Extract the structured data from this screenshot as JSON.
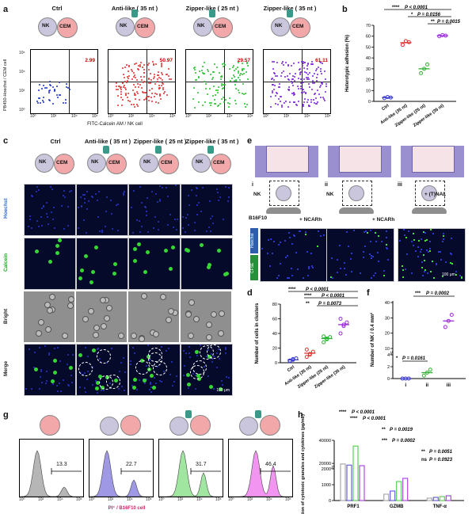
{
  "a": {
    "label": "a",
    "titles": [
      "Ctrl",
      "Anti-like ( 35 nt )",
      "Zipper-like ( 25 nt )",
      "Zipper-like ( 35 nt )"
    ],
    "percents": [
      "2.99",
      "50.97",
      "29.57",
      "61.11"
    ],
    "pct_colors": [
      "#d32222",
      "#d32222",
      "#d32222",
      "#d32222"
    ],
    "dot_colors": [
      "#1a33c9",
      "#e23030",
      "#22c42a",
      "#7a22d8"
    ],
    "ylabel": "PB450-Hoechst / CEM cell",
    "xlabel": "FITC-Calcein AM / NK cell",
    "ticks": [
      "10⁰",
      "10²",
      "10⁴",
      "10⁶"
    ],
    "nk": "NK",
    "cem": "CEM"
  },
  "b": {
    "label": "b",
    "ylabel": "Heterotypic adhesion (%)",
    "sig1": "P < 0.0001",
    "sig1s": "****",
    "sig2": "P = 0.0156",
    "sig2s": "*",
    "sig3": "P = 0.0015",
    "sig3s": "**"
  },
  "c": {
    "label": "c",
    "titles": [
      "Ctrl",
      "Anti-like ( 35 nt )",
      "Zipper-like ( 25 nt )",
      "Zipper-like ( 35 nt )"
    ],
    "rows": [
      "Hoechst",
      "Calcein",
      "Bright",
      "Merge"
    ],
    "scale": "100 μm"
  },
  "d": {
    "label": "d",
    "ylabel": "Number of cells in clusters",
    "sig1": "P < 0.0001",
    "sig1s": "****",
    "sig2": "P < 0.0001",
    "sig2s": "****",
    "sig3": "P = 0.0073",
    "sig3s": "**"
  },
  "e": {
    "label": "e",
    "romans": [
      "i",
      "ii",
      "iii"
    ],
    "nk": "NK",
    "tnal": "+ (T)NAL",
    "b16": "B16F10",
    "ncarh1": "+ NCARh",
    "ncarh2": "+ NCARh",
    "hoechst": "Hoechst",
    "cfse": "CFSE",
    "scale": "100 μm"
  },
  "f": {
    "label": "f",
    "ylabel": "Number of NK / 0.4 mm²",
    "sig1": "P = 0.0002",
    "sig1s": "***",
    "sig2": "P = 0.0161",
    "sig2s": "*",
    "xcats": [
      "i",
      "ii",
      "iii"
    ]
  },
  "g": {
    "label": "g",
    "values": [
      "13.3",
      "22.7",
      "31.7",
      "46.4"
    ],
    "colors": [
      "#a9a9a9",
      "#8d86e0",
      "#8fe08f",
      "#ee82ee"
    ],
    "xlabel": "PI⁺ / B16F10 cell",
    "ticks": [
      "10⁰",
      "10²",
      "10⁴",
      "10⁶"
    ]
  },
  "h": {
    "label": "h",
    "ylabel": "Secretion of cytotoxic granules and cytokines (pg/mL)",
    "sigs": [
      {
        "stars": "****",
        "text": "P < 0.0001"
      },
      {
        "stars": "****",
        "text": "P < 0.0001"
      },
      {
        "stars": "**",
        "text": "P = 0.0019"
      },
      {
        "stars": "***",
        "text": "P = 0.0002"
      },
      {
        "stars": "**",
        "text": "P = 0.0051"
      },
      {
        "stars": "ns",
        "text": "P = 0.0923"
      }
    ],
    "yticks": [
      "0",
      "1000",
      "2000",
      "20000",
      "40000"
    ]
  },
  "chart_data": [
    {
      "type": "scatter",
      "panel": "b",
      "ylabel": "Heterotypic adhesion (%)",
      "ylim": [
        0,
        70
      ],
      "yticks": [
        "0",
        "10",
        "20",
        "30",
        "40",
        "50",
        "60",
        "70"
      ],
      "categories": [
        "Ctrl",
        "Anti-like (35 nt)",
        "Zipper-like (25 nt)",
        "Zipper-like (35 nt)"
      ],
      "colors": [
        "#3a3ad0",
        "#e03030",
        "#2fb02f",
        "#9a2ad8"
      ],
      "means": [
        3.5,
        54,
        30,
        60.5
      ],
      "points": [
        [
          3,
          4,
          3.5
        ],
        [
          52,
          55.5,
          54.5
        ],
        [
          26,
          30,
          34
        ],
        [
          60,
          61,
          60.5
        ]
      ]
    },
    {
      "type": "scatter",
      "panel": "d",
      "ylabel": "Number of cells in clusters",
      "ylim": [
        0,
        80
      ],
      "yticks": [
        "0",
        "20",
        "40",
        "60",
        "80"
      ],
      "categories": [
        "Ctrl",
        "Anti-like (35 nt)",
        "Zipper-like (25 nt)",
        "Zipper-like (35 nt)"
      ],
      "colors": [
        "#3a3ad0",
        "#e03030",
        "#2fb02f",
        "#9a2ad8"
      ],
      "means": [
        4,
        13,
        33,
        52
      ],
      "points": [
        [
          2,
          4,
          6,
          3,
          5
        ],
        [
          8,
          12,
          15,
          18,
          11
        ],
        [
          28,
          32,
          35,
          36,
          33
        ],
        [
          40,
          50,
          55,
          60,
          52
        ]
      ]
    },
    {
      "type": "scatter",
      "panel": "f",
      "ylabel": "Number of NK / 0.4 mm²",
      "categories": [
        "i",
        "ii",
        "iii"
      ],
      "yticks": [
        "0",
        "2",
        "4",
        "10",
        "20",
        "30",
        "40"
      ],
      "colors": [
        "#3a3ad0",
        "#2fb02f",
        "#9a2ad8"
      ],
      "means": [
        0,
        1,
        28
      ],
      "points": [
        [
          0,
          0,
          0
        ],
        [
          0.5,
          1,
          1.5
        ],
        [
          24,
          28,
          32
        ]
      ]
    },
    {
      "type": "bar",
      "panel": "h",
      "categories": [
        "PRF1",
        "GZMB",
        "TNF-α"
      ],
      "series": [
        {
          "color": "#a9a9a9",
          "values": [
            19500,
            400,
            150
          ]
        },
        {
          "color": "#6a62d8",
          "values": [
            18500,
            600,
            200
          ]
        },
        {
          "color": "#5ad25a",
          "values": [
            35000,
            1200,
            250
          ]
        },
        {
          "color": "#b04ad8",
          "values": [
            18000,
            1400,
            300
          ]
        }
      ]
    }
  ]
}
